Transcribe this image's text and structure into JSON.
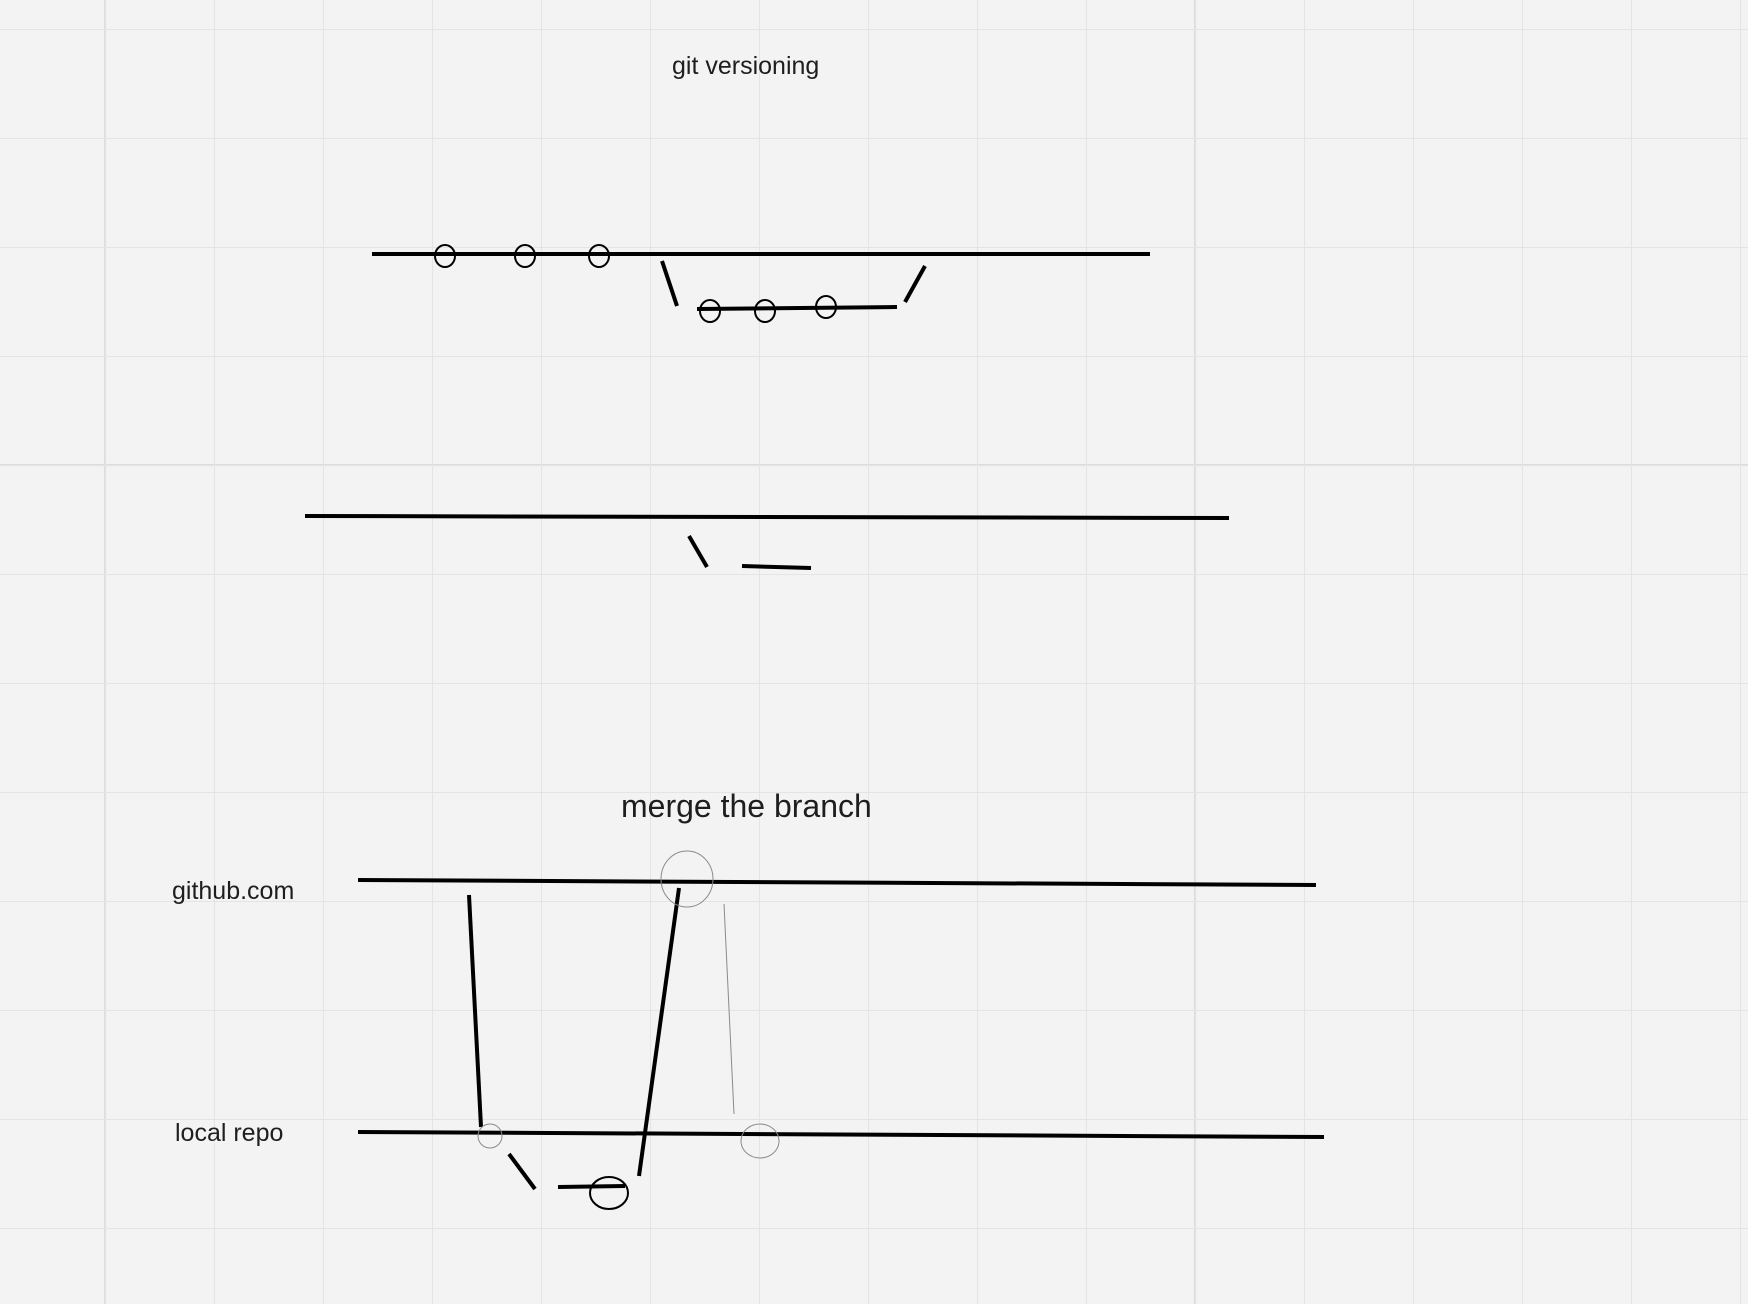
{
  "canvas": {
    "background_color": "#f3f3f3",
    "grid_color": "#e4e4e4",
    "ink_color": "#000000",
    "faint_ink_color": "#8a8a8a"
  },
  "labels": {
    "git_versioning": "git versioning",
    "merge_the_branch": "merge the branch",
    "github_com": "github.com",
    "local_repo": "local repo"
  },
  "icons": {
    "commit": "commit-circle-icon"
  }
}
